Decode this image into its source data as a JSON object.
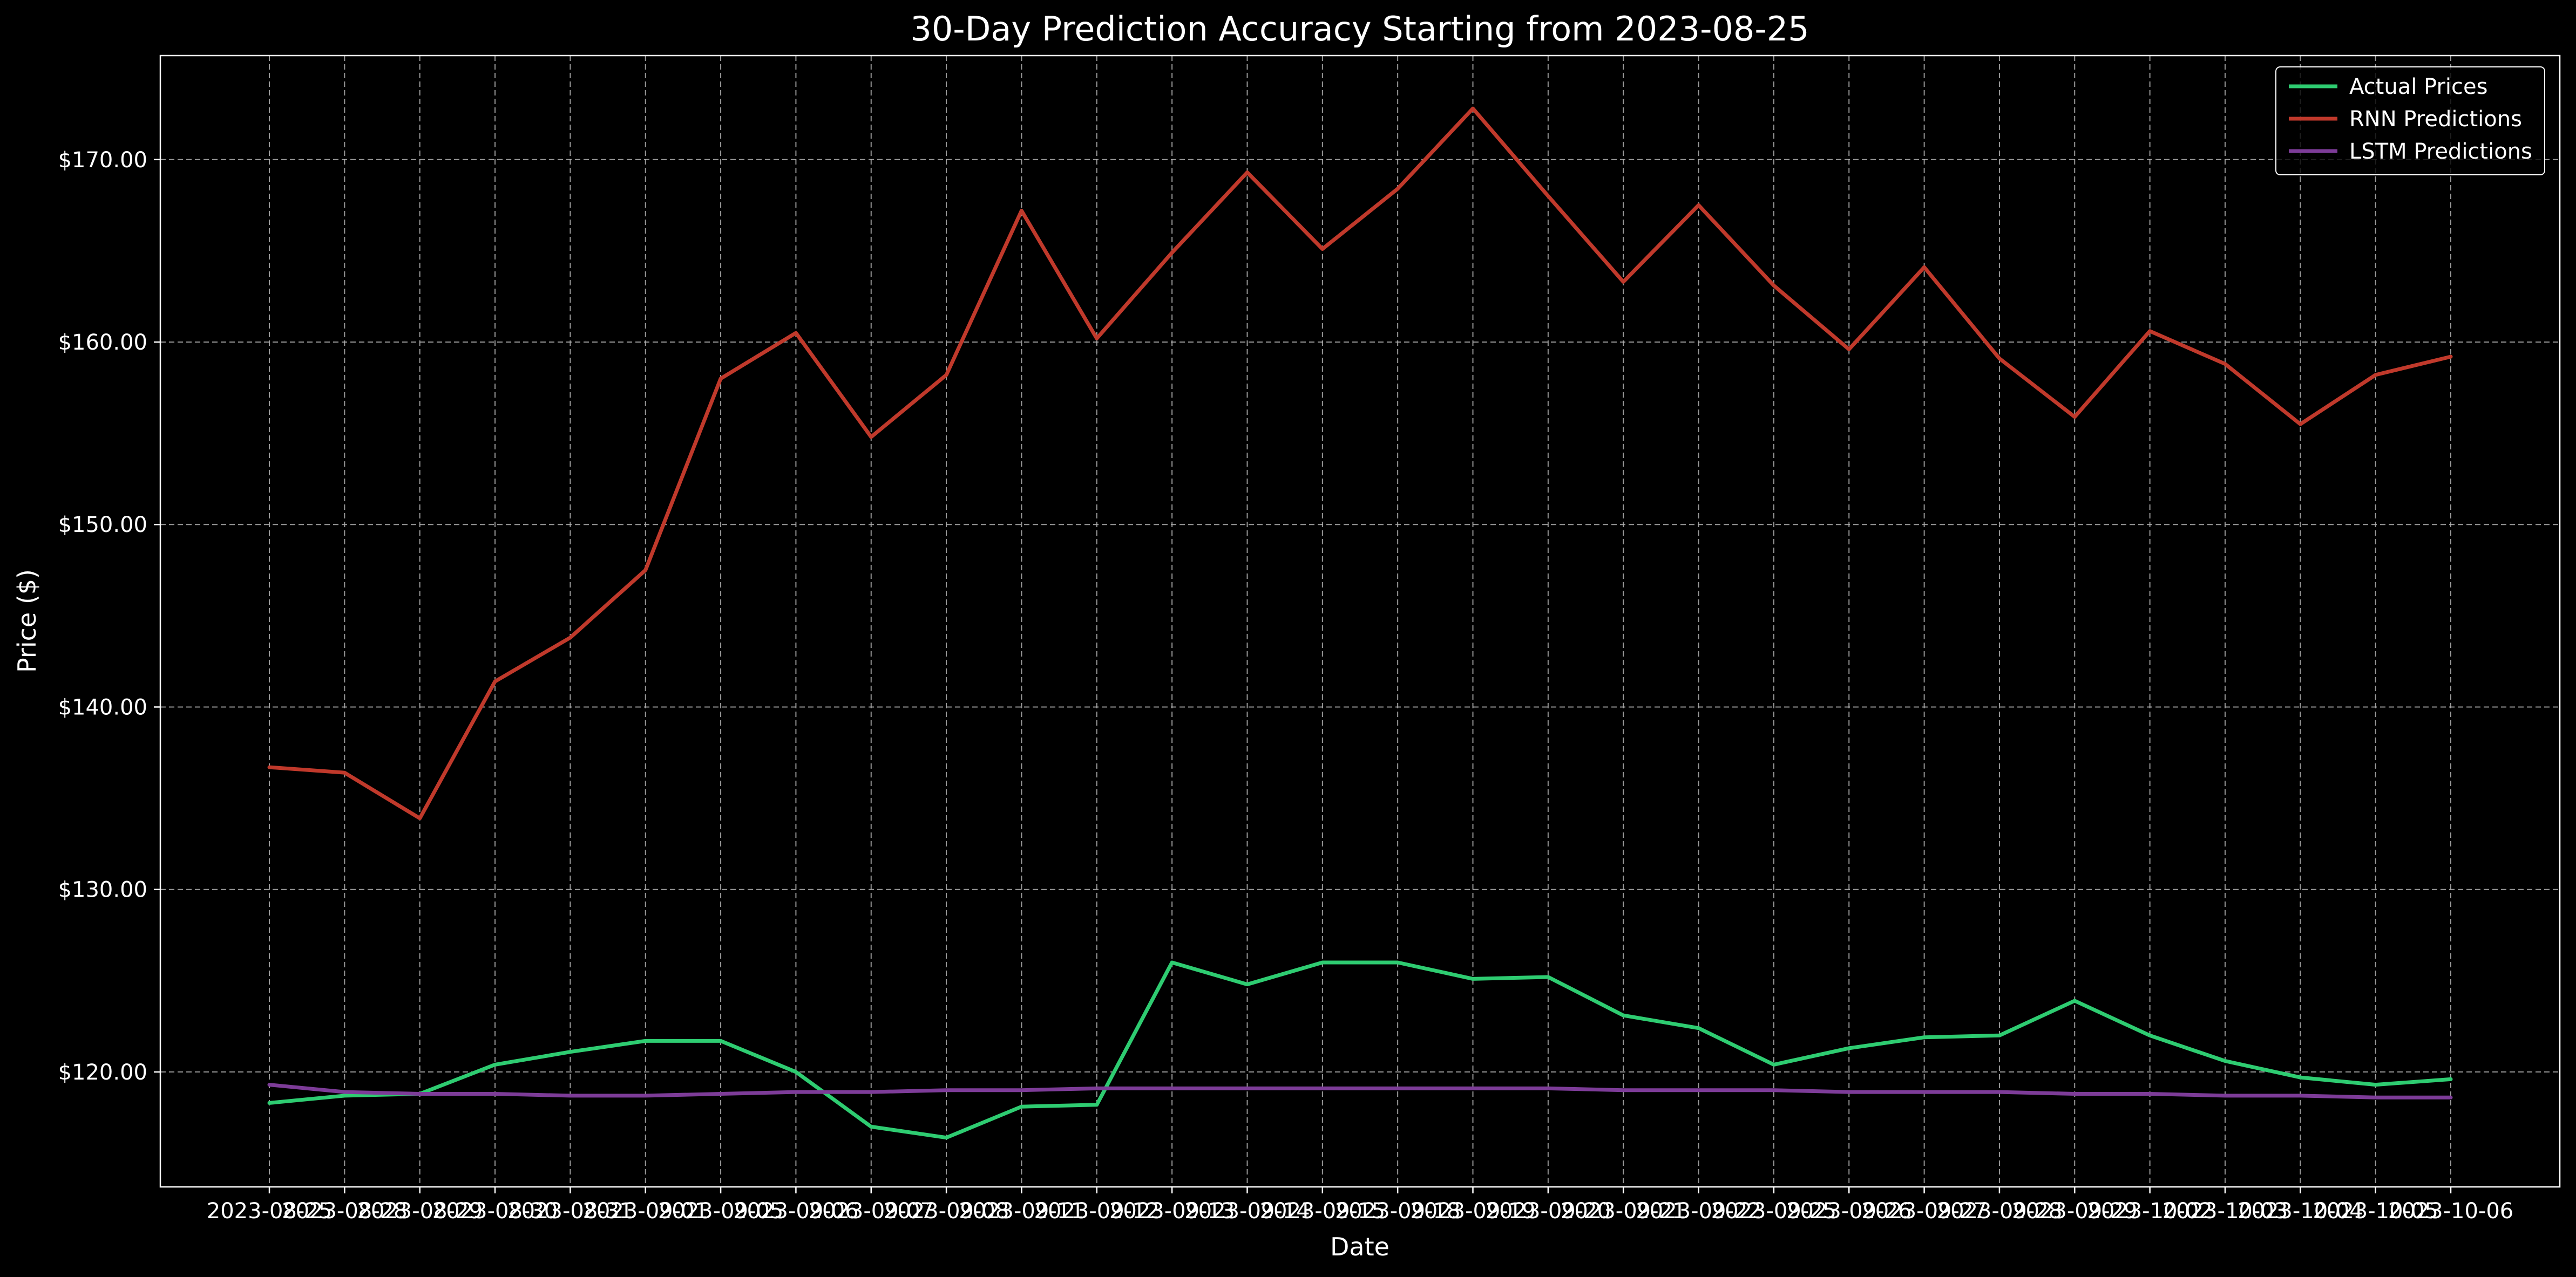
{
  "chart_data": {
    "type": "line",
    "title": "30-Day Prediction Accuracy Starting from 2023-08-25",
    "xlabel": "Date",
    "ylabel": "Price ($)",
    "grid": true,
    "legend_position": "top-right",
    "y_ticks": [
      "$120.00",
      "$130.00",
      "$140.00",
      "$150.00",
      "$160.00",
      "$170.00"
    ],
    "y_tick_values": [
      120,
      130,
      140,
      150,
      160,
      170
    ],
    "ylim": [
      113.7,
      175.7
    ],
    "x": [
      "2023-08-25",
      "2023-08-28",
      "2023-08-29",
      "2023-08-30",
      "2023-08-31",
      "2023-09-01",
      "2023-09-05",
      "2023-09-06",
      "2023-09-07",
      "2023-09-08",
      "2023-09-11",
      "2023-09-12",
      "2023-09-13",
      "2023-09-14",
      "2023-09-15",
      "2023-09-18",
      "2023-09-19",
      "2023-09-20",
      "2023-09-21",
      "2023-09-22",
      "2023-09-25",
      "2023-09-26",
      "2023-09-27",
      "2023-09-28",
      "2023-09-29",
      "2023-10-02",
      "2023-10-03",
      "2023-10-04",
      "2023-10-05",
      "2023-10-06"
    ],
    "series": [
      {
        "name": "Actual Prices",
        "color": "#2ecc71",
        "values": [
          118.3,
          118.7,
          118.8,
          120.4,
          121.1,
          121.7,
          121.7,
          120.0,
          117.0,
          116.4,
          118.1,
          118.2,
          126.0,
          124.8,
          126.0,
          126.0,
          125.1,
          125.2,
          123.1,
          122.4,
          120.4,
          121.3,
          121.9,
          122.0,
          123.9,
          122.0,
          120.6,
          119.7,
          119.3,
          119.6
        ]
      },
      {
        "name": "RNN Predictions",
        "color": "#c0392b",
        "values": [
          136.7,
          136.4,
          133.9,
          141.4,
          143.8,
          147.5,
          158.0,
          160.5,
          154.8,
          158.2,
          167.2,
          160.2,
          164.9,
          169.3,
          165.1,
          168.4,
          172.8,
          168.0,
          163.3,
          167.5,
          163.1,
          159.6,
          164.1,
          159.1,
          155.9,
          160.6,
          158.8,
          155.5,
          158.2,
          159.2
        ]
      },
      {
        "name": "LSTM Predictions",
        "color": "#7d3c98",
        "values": [
          119.3,
          118.9,
          118.8,
          118.8,
          118.7,
          118.7,
          118.8,
          118.9,
          118.9,
          119.0,
          119.0,
          119.1,
          119.1,
          119.1,
          119.1,
          119.1,
          119.1,
          119.1,
          119.0,
          119.0,
          119.0,
          118.9,
          118.9,
          118.9,
          118.8,
          118.8,
          118.7,
          118.7,
          118.6,
          118.6
        ]
      }
    ]
  }
}
